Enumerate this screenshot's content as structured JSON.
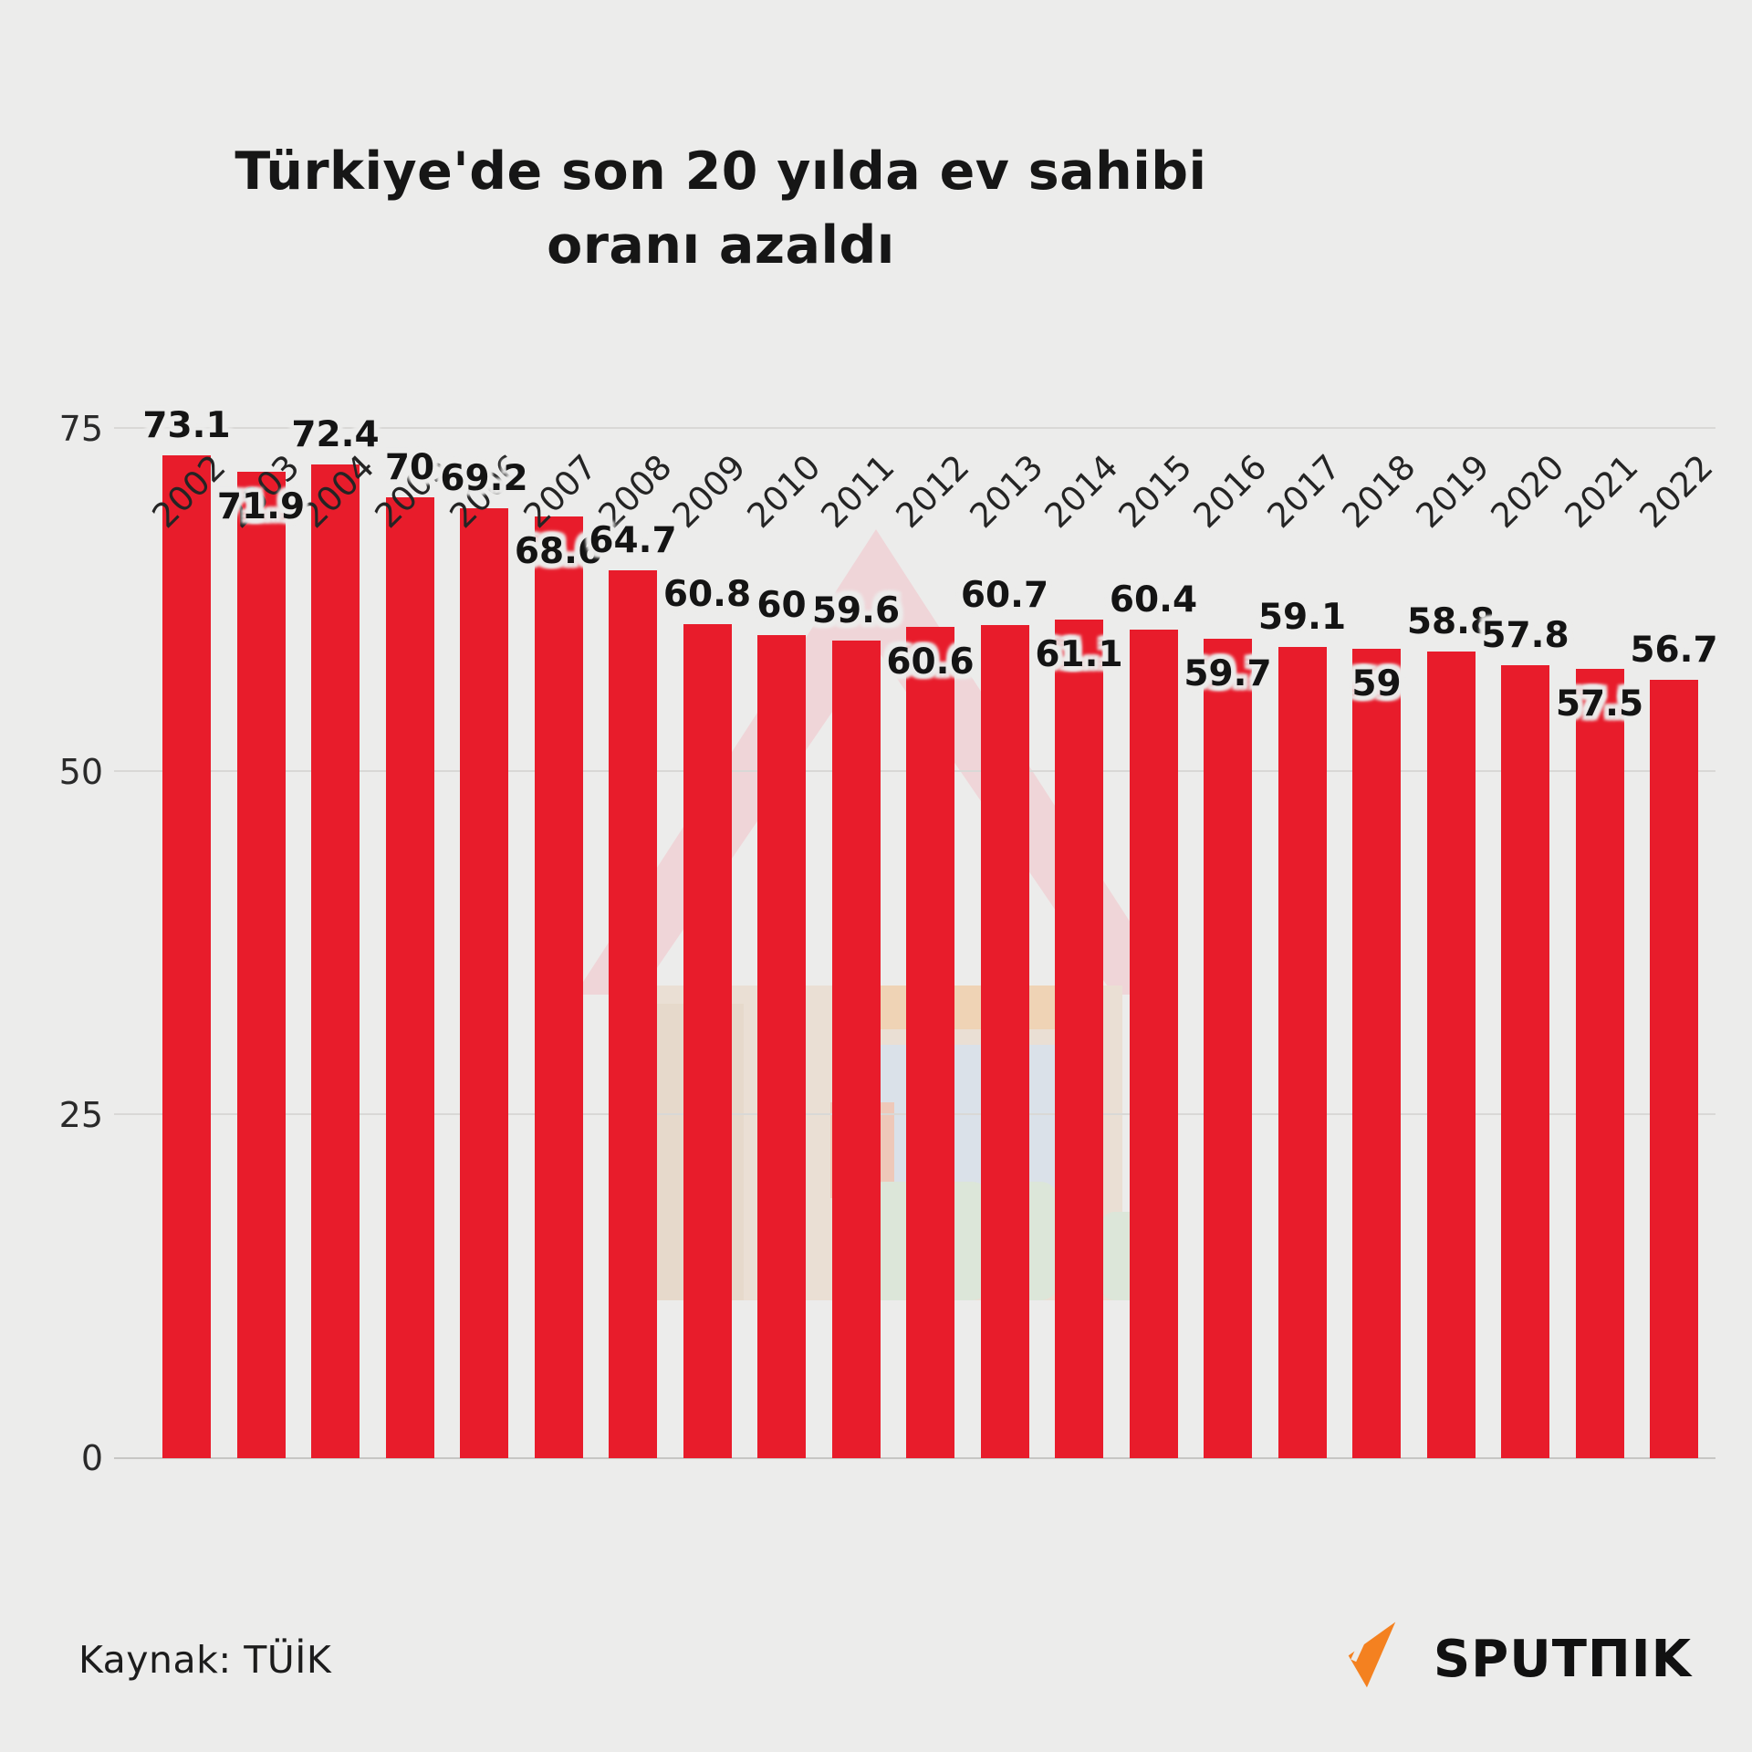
{
  "title": {
    "line1": "Türkiye'de son 20 yılda ev sahibi",
    "line2": "oranı azaldı"
  },
  "source": {
    "label": "Kaynak: TÜİK"
  },
  "logo": {
    "text": "SPUTΠIK"
  },
  "colors": {
    "background": "#ececeb",
    "bar": "#e81c2b",
    "grid": "#d9d8d6",
    "text": "#161616",
    "logo_orange": "#f48120",
    "watermark_roof": "#f2c4c9",
    "watermark_wall": "#e9d6c2",
    "watermark_window": "#ccd9e9",
    "watermark_orange": "#f2c08a",
    "watermark_salmon": "#f0ab92",
    "watermark_green": "#cfe2cb"
  },
  "chart_data": {
    "type": "bar",
    "title": "Türkiye'de son 20 yılda ev sahibi oranı azaldı",
    "categories": [
      "2002",
      "2003",
      "2004",
      "2005",
      "2006",
      "2007",
      "2008",
      "2009",
      "2010",
      "2011",
      "2012",
      "2013",
      "2014",
      "2015",
      "2016",
      "2017",
      "2018",
      "2019",
      "2020",
      "2021",
      "2022"
    ],
    "values": [
      73.1,
      71.9,
      72.4,
      70,
      69.2,
      68.6,
      64.7,
      60.8,
      60,
      59.6,
      60.6,
      60.7,
      61.1,
      60.4,
      59.7,
      59.1,
      59,
      58.8,
      57.8,
      57.5,
      56.7
    ],
    "xlabel": "",
    "ylabel": "",
    "ylim": [
      0,
      75
    ],
    "y_ticks": [
      0,
      25,
      50,
      75
    ],
    "grid": true,
    "legend": false,
    "value_labels": true
  }
}
